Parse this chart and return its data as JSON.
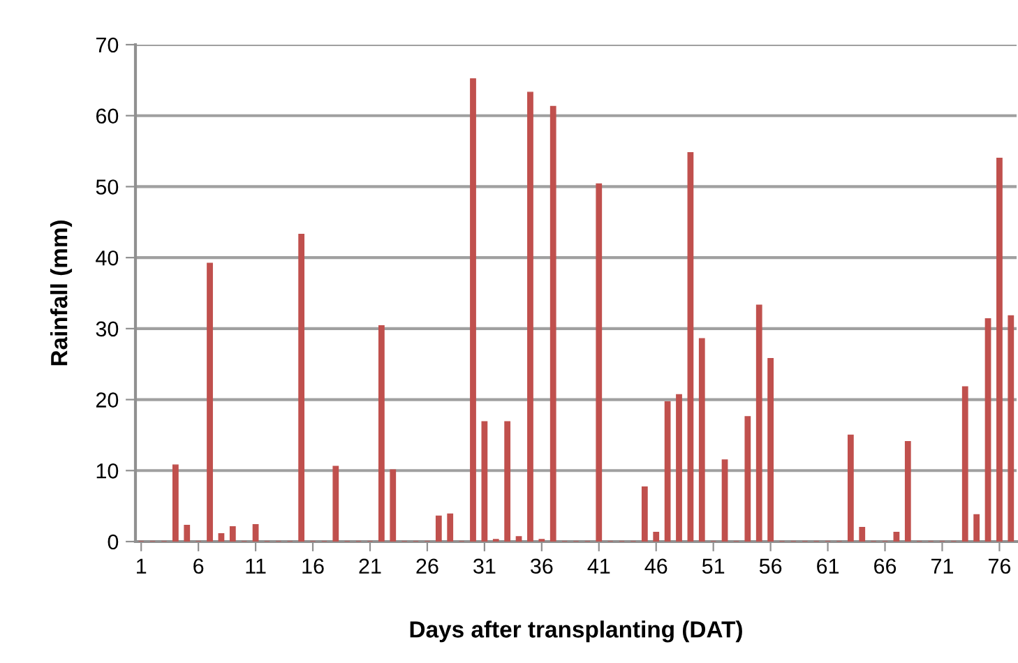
{
  "chart_data": {
    "type": "bar",
    "xlabel": "Days after transplanting (DAT)",
    "ylabel": "Rainfall (mm)",
    "categories": [
      "1",
      null,
      null,
      null,
      null,
      "6",
      null,
      null,
      null,
      null,
      "11",
      null,
      null,
      null,
      null,
      "16",
      null,
      null,
      null,
      null,
      "21",
      null,
      null,
      null,
      null,
      "26",
      null,
      null,
      null,
      null,
      "31",
      null,
      null,
      null,
      null,
      "36",
      null,
      null,
      null,
      null,
      "41",
      null,
      null,
      null,
      null,
      "46",
      null,
      null,
      null,
      null,
      "51",
      null,
      null,
      null,
      null,
      "56",
      null,
      null,
      null,
      null,
      "61",
      null,
      null,
      null,
      null,
      "66",
      null,
      null,
      null,
      null,
      "71",
      null,
      null,
      null,
      null,
      "76",
      null
    ],
    "values": [
      0,
      0,
      0,
      10.8,
      2.3,
      0,
      39.2,
      1.1,
      2.1,
      0,
      2.4,
      0,
      0,
      0,
      43.3,
      0,
      0,
      10.6,
      0,
      0,
      0,
      30.4,
      10.1,
      0,
      0,
      0,
      3.6,
      3.9,
      0,
      65.2,
      16.9,
      0.3,
      16.9,
      0.7,
      63.3,
      0.3,
      61.3,
      0,
      0,
      0,
      50.4,
      0,
      0,
      0,
      7.7,
      1.3,
      19.7,
      20.7,
      54.8,
      28.6,
      0,
      11.5,
      0,
      17.6,
      33.3,
      25.8,
      0,
      0,
      0,
      0,
      0,
      0,
      15.0,
      2.0,
      0,
      0,
      1.3,
      14.1,
      0,
      0,
      0,
      0,
      21.8,
      3.8,
      31.4,
      54.0,
      31.8
    ],
    "color": "#c0504d",
    "ylim": [
      0,
      70
    ],
    "yticks": [
      0,
      10,
      20,
      30,
      40,
      50,
      60,
      70
    ],
    "grid": "y",
    "legend": false
  }
}
